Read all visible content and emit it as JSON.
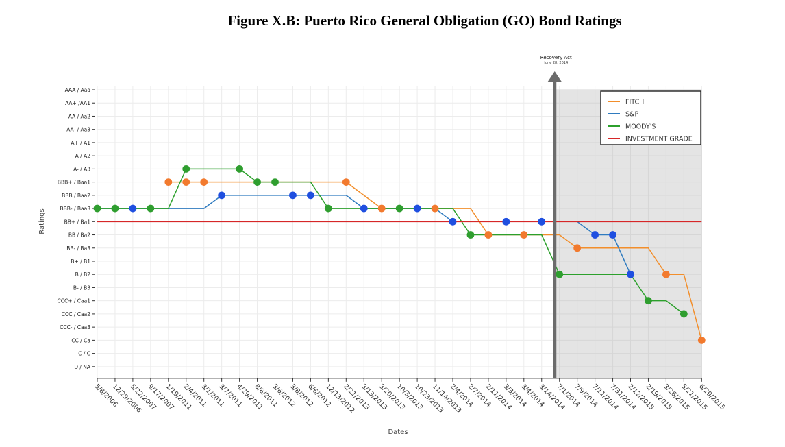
{
  "chart_data": {
    "type": "line",
    "title": "Figure X.B: Puerto Rico General Obligation (GO) Bond Ratings",
    "xlabel": "Dates",
    "ylabel": "Ratings",
    "rating_levels": [
      "AAA / Aaa",
      "AA+ /AA1",
      "AA / Aa2",
      "AA- / Aa3",
      "A+ / A1",
      "A / A2",
      "A- / A3",
      "BBB+ / Baa1",
      "BBB / Baa2",
      "BBB- / Baa3",
      "BB+ / Ba1",
      "BB / Ba2",
      "BB- / Ba3",
      "B+ / B1",
      "B / B2",
      "B- / B3",
      "CCC+ / Caa1",
      "CCC / Caa2",
      "CCC- / Caa3",
      "CC / Ca",
      "C / C",
      "D / NA"
    ],
    "dates": [
      "5/8/2006",
      "12/29/2006",
      "5/22/2007",
      "9/17/2007",
      "1/19/2011",
      "2/4/2011",
      "3/1/2011",
      "3/7/2011",
      "4/29/2011",
      "8/8/2011",
      "3/6/2012",
      "3/8/2012",
      "6/6/2012",
      "12/13/2012",
      "2/21/2013",
      "3/13/2013",
      "3/20/2013",
      "10/3/2013",
      "10/23/2013",
      "11/14/2013",
      "2/4/2014",
      "2/7/2014",
      "2/11/2014",
      "3/3/2014",
      "3/4/2014",
      "3/14/2014",
      "7/1/2014",
      "7/9/2014",
      "7/11/2014",
      "7/31/2014",
      "2/12/2015",
      "2/19/2015",
      "3/26/2015",
      "5/21/2015",
      "6/29/2015"
    ],
    "series": [
      {
        "name": "FITCH",
        "color": "#f28e2b",
        "line": [
          [
            4,
            7
          ],
          [
            14,
            7
          ],
          [
            15,
            8
          ],
          [
            16,
            9
          ],
          [
            19,
            9
          ],
          [
            20,
            9
          ],
          [
            21,
            9
          ],
          [
            22,
            11
          ],
          [
            25,
            11
          ],
          [
            26,
            11
          ],
          [
            27,
            12
          ],
          [
            31,
            12
          ],
          [
            32,
            14
          ],
          [
            33,
            14
          ],
          [
            34,
            19
          ]
        ],
        "markers": [
          [
            4,
            7
          ],
          [
            5,
            7
          ],
          [
            6,
            7
          ],
          [
            14,
            7
          ],
          [
            16,
            9
          ],
          [
            19,
            9
          ],
          [
            22,
            11
          ],
          [
            24,
            11
          ],
          [
            27,
            12
          ],
          [
            32,
            14
          ],
          [
            34,
            19
          ]
        ]
      },
      {
        "name": "S&P",
        "color": "#2f7bbf",
        "line": [
          [
            0,
            9
          ],
          [
            6,
            9
          ],
          [
            7,
            8
          ],
          [
            14,
            8
          ],
          [
            15,
            9
          ],
          [
            19,
            9
          ],
          [
            20,
            10
          ],
          [
            26,
            10
          ],
          [
            27,
            10
          ],
          [
            28,
            11
          ],
          [
            29,
            11
          ],
          [
            30,
            14
          ]
        ],
        "markers": [
          [
            2,
            9
          ],
          [
            7,
            8
          ],
          [
            11,
            8
          ],
          [
            12,
            8
          ],
          [
            15,
            9
          ],
          [
            18,
            9
          ],
          [
            20,
            10
          ],
          [
            23,
            10
          ],
          [
            25,
            10
          ],
          [
            28,
            11
          ],
          [
            29,
            11
          ],
          [
            30,
            14
          ]
        ]
      },
      {
        "name": "MOODY'S",
        "color": "#2ca02c",
        "line": [
          [
            0,
            9
          ],
          [
            4,
            9
          ],
          [
            5,
            6
          ],
          [
            8,
            6
          ],
          [
            9,
            7
          ],
          [
            12,
            7
          ],
          [
            13,
            9
          ],
          [
            20,
            9
          ],
          [
            21,
            11
          ],
          [
            25,
            11
          ],
          [
            26,
            14
          ],
          [
            30,
            14
          ],
          [
            31,
            16
          ],
          [
            32,
            16
          ],
          [
            33,
            17
          ]
        ],
        "markers": [
          [
            0,
            9
          ],
          [
            1,
            9
          ],
          [
            3,
            9
          ],
          [
            5,
            6
          ],
          [
            8,
            6
          ],
          [
            9,
            7
          ],
          [
            10,
            7
          ],
          [
            13,
            9
          ],
          [
            17,
            9
          ],
          [
            21,
            11
          ],
          [
            26,
            14
          ],
          [
            31,
            16
          ],
          [
            33,
            17
          ]
        ]
      },
      {
        "name": "INVESTMENT GRADE",
        "color": "#d62728",
        "level": 10
      }
    ],
    "marker_colors": {
      "fitch": "#f27a2e",
      "sp": "#1f4fe0",
      "moodys": "#2f9e2f"
    },
    "annotation": {
      "label": "Recovery Act",
      "sublabel": "June 28, 2014",
      "after_date": "3/14/2014"
    },
    "shaded_region": {
      "from_date": "3/14/2014",
      "to_date": "6/29/2015",
      "color": "#e4e4e4"
    },
    "legend_position": "top-right",
    "grid": true
  }
}
